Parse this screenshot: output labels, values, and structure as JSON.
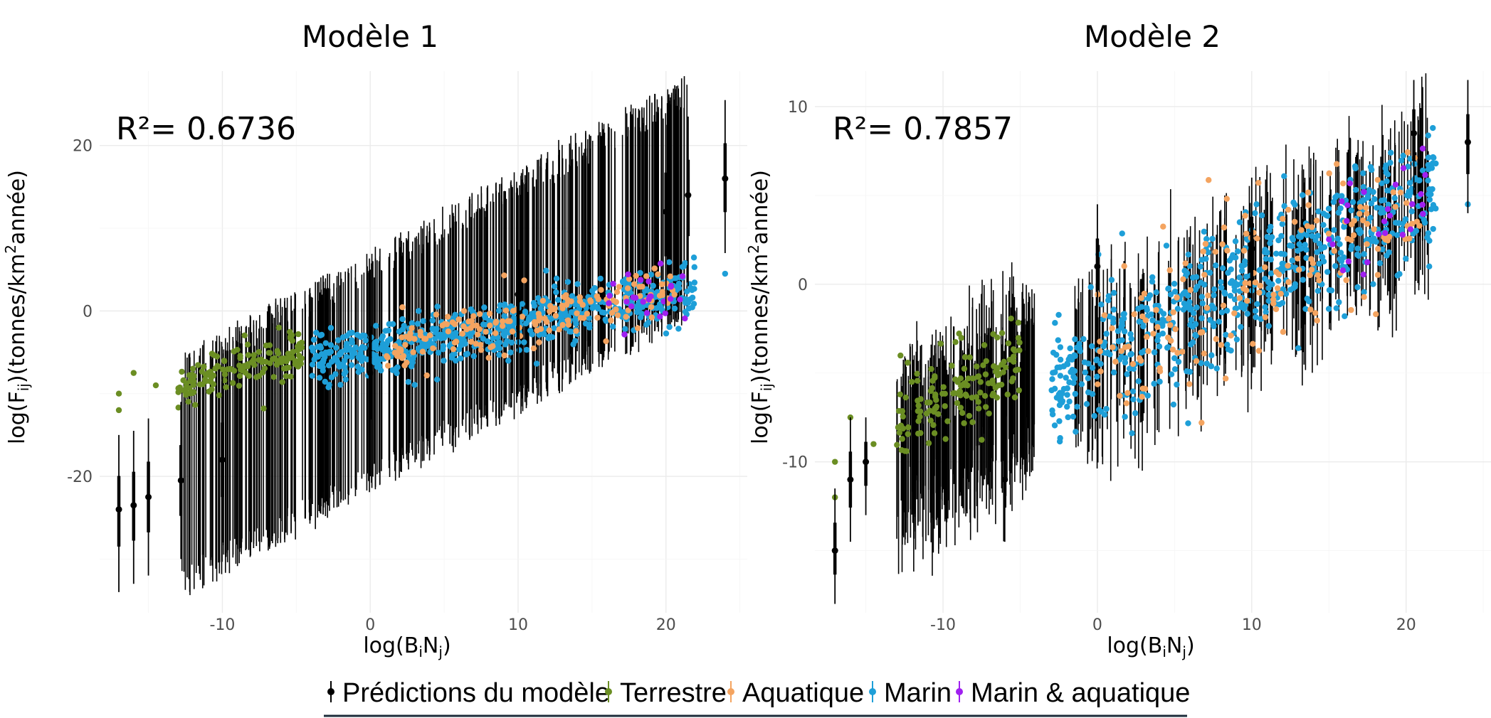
{
  "legend": {
    "items": [
      {
        "label": "Prédictions du modèle",
        "color": "#000000"
      },
      {
        "label": "Terrestre",
        "color": "#6b8e23"
      },
      {
        "label": "Aquatique",
        "color": "#f4a460"
      },
      {
        "label": "Marin",
        "color": "#1e9fd8"
      },
      {
        "label": "Marin & aquatique",
        "color": "#a020f0"
      }
    ]
  },
  "chart_data": [
    {
      "type": "scatter",
      "title": "Modèle 1",
      "annotation": "R²= 0.6736",
      "xlabel": "log(BiNj)",
      "ylabel": "log(Fij)(tonnes/km2année)",
      "xlim": [
        -18.3,
        25.5
      ],
      "ylim": [
        -36.5,
        29
      ],
      "xticks": [
        -10,
        0,
        10,
        20
      ],
      "yticks": [
        -20,
        0,
        20
      ],
      "grid": true,
      "prediction_trend": {
        "slope": 0.98,
        "intercept": -7.4
      },
      "prediction_interval_halfwidth": 13,
      "series": [
        {
          "name": "Prédictions du modèle",
          "kind": "pointrange",
          "color": "#000000",
          "samples": [
            [
              -17,
              -24,
              -34,
              -15
            ],
            [
              -16,
              -23.5,
              -33,
              -14.5
            ],
            [
              -15,
              -22.5,
              -32,
              -13
            ],
            [
              -12.8,
              -20.5,
              -30,
              -11
            ],
            [
              -10,
              -18,
              -28,
              -8
            ],
            [
              0,
              -7.5,
              -20,
              5
            ],
            [
              10,
              2,
              -10,
              14
            ],
            [
              20,
              12,
              0,
              22.5
            ],
            [
              21.5,
              14,
              3,
              23.5
            ],
            [
              24,
              16,
              7,
              25.5
            ]
          ]
        },
        {
          "name": "Terrestre",
          "color": "#6b8e23",
          "x_range": [
            -13,
            -4.5
          ],
          "trend": {
            "slope": 0.55,
            "intercept": -2.2
          },
          "spread": 1.4,
          "outliers": [
            [
              -17,
              -10
            ],
            [
              -17,
              -12
            ],
            [
              -16,
              -7.5
            ],
            [
              -14.5,
              -9
            ]
          ]
        },
        {
          "name": "Aquatique",
          "color": "#f4a460",
          "x_range": [
            1,
            21
          ],
          "trend": {
            "slope": 0.34,
            "intercept": -4.8
          },
          "spread": 1.8
        },
        {
          "name": "Marin",
          "color": "#1e9fd8",
          "x_range": [
            -4,
            22
          ],
          "trend": {
            "slope": 0.34,
            "intercept": -4.8
          },
          "spread": 1.6,
          "outliers": [
            [
              24,
              4.5
            ],
            [
              21.5,
              1
            ]
          ]
        },
        {
          "name": "Marin & aquatique",
          "color": "#a020f0",
          "x_range": [
            16,
            21.5
          ],
          "trend": {
            "slope": 0.34,
            "intercept": -4.8
          },
          "spread": 1.6
        }
      ]
    },
    {
      "type": "scatter",
      "title": "Modèle 2",
      "annotation": "R²= 0.7857",
      "xlabel": "log(BiNj)",
      "ylabel": "log(Fij)(tonnes/km2année)",
      "xlim": [
        -18.3,
        25.5
      ],
      "ylim": [
        -18.5,
        12
      ],
      "xticks": [
        -10,
        0,
        10,
        20
      ],
      "yticks": [
        -10,
        0,
        10
      ],
      "grid": true,
      "prediction_trend": {
        "slope": 0.45,
        "intercept": -4.6
      },
      "prediction_interval_halfwidth": 4,
      "series": [
        {
          "name": "Prédictions du modèle",
          "kind": "pointrange",
          "color": "#000000",
          "samples": [
            [
              -17,
              -15,
              -18,
              -11.5
            ],
            [
              -16,
              -11,
              -14.5,
              -7.5
            ],
            [
              -15,
              -10,
              -13,
              -7.5
            ],
            [
              -6,
              -11,
              -14.5,
              -7.5
            ],
            [
              0,
              1,
              -2,
              4.5
            ],
            [
              10,
              2,
              -2,
              6
            ],
            [
              20.5,
              8.5,
              5,
              11.5
            ],
            [
              24,
              8,
              4,
              11.5
            ]
          ]
        },
        {
          "name": "Terrestre",
          "color": "#6b8e23",
          "x_range": [
            -13,
            -5
          ],
          "trend": {
            "slope": 0.5,
            "intercept": -1.5
          },
          "spread": 1.3,
          "outliers": [
            [
              -17,
              -10
            ],
            [
              -17,
              -12
            ],
            [
              -16,
              -7.5
            ],
            [
              -14.5,
              -9
            ]
          ]
        },
        {
          "name": "Aquatique",
          "color": "#f4a460",
          "x_range": [
            0,
            21
          ],
          "trend": {
            "slope": 0.44,
            "intercept": -4.3
          },
          "spread": 2.2
        },
        {
          "name": "Marin",
          "color": "#1e9fd8",
          "x_range": [
            -3,
            22
          ],
          "trend": {
            "slope": 0.44,
            "intercept": -4.3
          },
          "spread": 1.8,
          "outliers": [
            [
              24,
              4.5
            ],
            [
              21.5,
              1
            ]
          ]
        },
        {
          "name": "Marin & aquatique",
          "color": "#a020f0",
          "x_range": [
            15,
            21.5
          ],
          "trend": {
            "slope": 0.44,
            "intercept": -4.3
          },
          "spread": 1.8
        }
      ]
    }
  ]
}
